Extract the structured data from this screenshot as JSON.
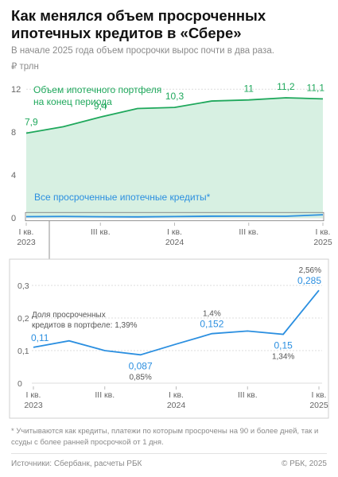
{
  "title": "Как менялся объем просроченных ипотечных кредитов в «Сбере»",
  "subtitle": "В начале 2025 года объем просрочки вырос почти в два раза.",
  "unit": "₽ трлн",
  "footnote": "* Учитываются как кредиты, платежи по которым просрочены на 90 и более дней, так и ссуды с более ранней просрочкой от 1 дня.",
  "sources": "Источники: Сбербанк, расчеты РБК",
  "copyright": "© РБК, 2025",
  "colors": {
    "portfolio_line": "#1fa85c",
    "portfolio_fill": "#d7f0e2",
    "overdue": "#2b8fe0",
    "axis": "#bbbbbb",
    "text": "#666666"
  },
  "chart_data": [
    {
      "type": "area",
      "x_ticks": [
        {
          "index": 0,
          "lines": [
            "I кв.",
            "2023"
          ]
        },
        {
          "index": 2,
          "lines": [
            "III кв.",
            ""
          ]
        },
        {
          "index": 4,
          "lines": [
            "I кв.",
            "2024"
          ]
        },
        {
          "index": 6,
          "lines": [
            "III кв.",
            ""
          ]
        },
        {
          "index": 8,
          "lines": [
            "I кв.",
            "2025"
          ]
        }
      ],
      "yticks": [
        0,
        4,
        8,
        12
      ],
      "ylim": [
        0,
        13.5
      ],
      "series": [
        {
          "name": "Объем ипотечного портфеля на конец периода",
          "name_lines": [
            "Объем ипотечного портфеля",
            "на конец периода"
          ],
          "values": [
            7.9,
            8.5,
            9.4,
            10.2,
            10.3,
            10.9,
            11.0,
            11.2,
            11.1
          ],
          "labels": {
            "0": "7,9",
            "2": "9,4",
            "4": "10,3",
            "6": "11",
            "7": "11,2",
            "8": "11,1"
          }
        },
        {
          "name": "Все просроченные ипотечные кредиты*",
          "values": [
            0.11,
            0.13,
            0.1,
            0.087,
            0.12,
            0.152,
            0.16,
            0.15,
            0.285
          ]
        }
      ]
    },
    {
      "type": "line",
      "x_ticks": [
        {
          "index": 0,
          "lines": [
            "I кв.",
            "2023"
          ]
        },
        {
          "index": 2,
          "lines": [
            "III кв.",
            ""
          ]
        },
        {
          "index": 4,
          "lines": [
            "I кв.",
            "2024"
          ]
        },
        {
          "index": 6,
          "lines": [
            "III кв.",
            ""
          ]
        },
        {
          "index": 8,
          "lines": [
            "I кв.",
            "2025"
          ]
        }
      ],
      "yticks": [
        0,
        0.1,
        0.2,
        0.3
      ],
      "ytick_labels": [
        "0",
        "0,1",
        "0,2",
        "0,3"
      ],
      "ylim": [
        0,
        0.3
      ],
      "series": [
        {
          "name": "Все просроченные ипотечные кредиты*",
          "values": [
            0.11,
            0.13,
            0.1,
            0.087,
            0.12,
            0.152,
            0.16,
            0.15,
            0.285
          ],
          "labels": {
            "0": "0,11",
            "3": "0,087",
            "5": "0,152",
            "7": "0,15",
            "8": "0,285"
          }
        }
      ],
      "share_label_lines": [
        "Доля просроченных",
        "кредитов в портфеле: 1,39%"
      ],
      "share_annotations": {
        "3": "0,85%",
        "5": "1,4%",
        "7": "1,34%",
        "8": "2,56%"
      }
    }
  ]
}
